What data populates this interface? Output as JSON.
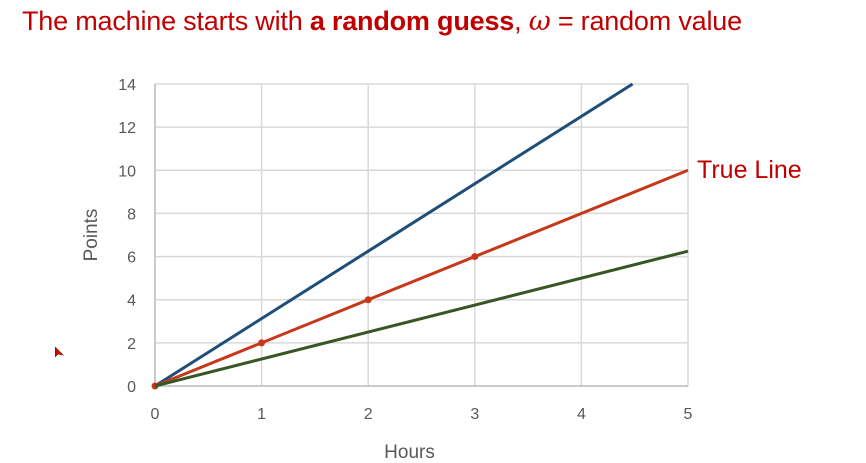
{
  "slide": {
    "title_prefix": "The machine starts with ",
    "title_bold": "a random guess",
    "title_comma": ", ",
    "title_symbol": "ω",
    "title_suffix": " = random value",
    "annotation": "True Line"
  },
  "colors": {
    "title": "#c00000",
    "blue": "#1f4e79",
    "red": "#c5391a",
    "green": "#375623",
    "grid": "#d9d9d9"
  },
  "chart_data": {
    "type": "line",
    "xlabel": "Hours",
    "ylabel": "Points",
    "xlim": [
      0,
      5
    ],
    "ylim": [
      0,
      14
    ],
    "xticks": [
      0,
      1,
      2,
      3,
      4,
      5
    ],
    "yticks": [
      0,
      2,
      4,
      6,
      8,
      10,
      12,
      14
    ],
    "grid": true,
    "series": [
      {
        "color": "#1f4e79",
        "x": [
          0,
          4.48
        ],
        "y": [
          0,
          14
        ],
        "markers": false
      },
      {
        "name": "True Line",
        "color": "#c5391a",
        "x": [
          0,
          5
        ],
        "y": [
          0,
          10
        ],
        "markers": false
      },
      {
        "color": "#c5391a",
        "x": [
          0,
          1,
          2,
          3
        ],
        "y": [
          0,
          2,
          4,
          6
        ],
        "markers": true,
        "points_only": true
      },
      {
        "color": "#375623",
        "x": [
          0,
          5
        ],
        "y": [
          0,
          6.25
        ],
        "markers": false
      }
    ]
  }
}
